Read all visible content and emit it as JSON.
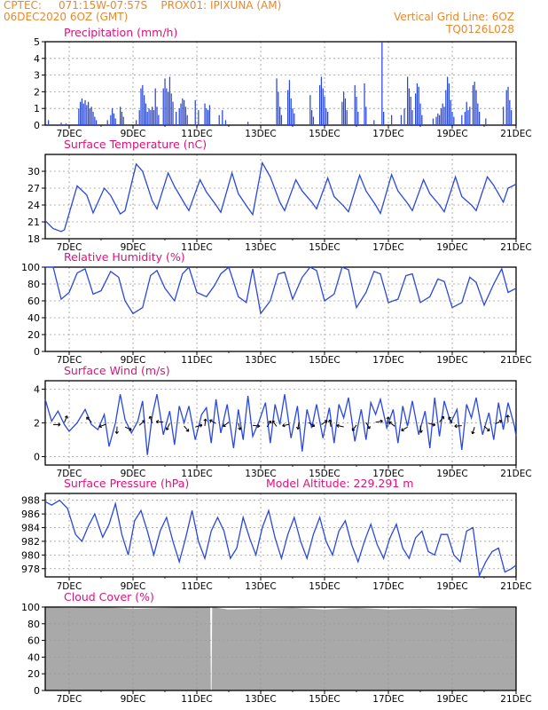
{
  "header": {
    "line1": "CPTEC:     071:15W-07:57S    PROX01: IPIXUNA (AM)",
    "line2": "06DEC2020 6OZ (GMT)",
    "vertical_grid": "Vertical Grid Line: 6OZ",
    "code": "TQ0126L028"
  },
  "colors": {
    "header": "#e8892c",
    "title": "#e0107a",
    "series": "#2a48e0",
    "cloud": "#a9a9a9",
    "grid": "#9a9a9a"
  },
  "chart_data": [
    {
      "id": "precip",
      "type": "bar",
      "title": "Precipitation (mm/h)",
      "x_ticks": [
        "7DEC",
        "9DEC",
        "11DEC",
        "13DEC",
        "15DEC",
        "17DEC",
        "19DEC",
        "21DEC"
      ],
      "ylim": [
        0,
        5
      ],
      "y_ticks": [
        "0",
        "1",
        "2",
        "3",
        "4",
        "5"
      ],
      "x_range_days": [
        6.25,
        21.0
      ],
      "bars": [
        [
          6.35,
          0.3
        ],
        [
          6.75,
          0.15
        ],
        [
          6.9,
          0.1
        ],
        [
          7.3,
          1.0
        ],
        [
          7.35,
          1.4
        ],
        [
          7.4,
          1.6
        ],
        [
          7.45,
          1.3
        ],
        [
          7.5,
          1.5
        ],
        [
          7.55,
          1.2
        ],
        [
          7.6,
          1.4
        ],
        [
          7.65,
          1.0
        ],
        [
          7.7,
          1.1
        ],
        [
          7.75,
          0.8
        ],
        [
          7.8,
          0.5
        ],
        [
          7.85,
          0.3
        ],
        [
          8.2,
          0.3
        ],
        [
          8.3,
          0.6
        ],
        [
          8.35,
          1.0
        ],
        [
          8.4,
          0.7
        ],
        [
          8.45,
          0.4
        ],
        [
          8.6,
          1.1
        ],
        [
          8.65,
          0.8
        ],
        [
          8.7,
          0.5
        ],
        [
          9.1,
          0.3
        ],
        [
          9.2,
          0.9
        ],
        [
          9.25,
          2.2
        ],
        [
          9.3,
          2.4
        ],
        [
          9.35,
          1.8
        ],
        [
          9.4,
          1.3
        ],
        [
          9.45,
          0.8
        ],
        [
          9.5,
          1.0
        ],
        [
          9.55,
          0.9
        ],
        [
          9.6,
          1.1
        ],
        [
          9.65,
          0.9
        ],
        [
          9.7,
          2.2
        ],
        [
          9.75,
          1.1
        ],
        [
          9.8,
          0.6
        ],
        [
          9.95,
          2.2
        ],
        [
          10.0,
          2.8
        ],
        [
          10.05,
          2.2
        ],
        [
          10.1,
          2.0
        ],
        [
          10.15,
          2.9
        ],
        [
          10.2,
          1.9
        ],
        [
          10.25,
          1.4
        ],
        [
          10.35,
          0.8
        ],
        [
          10.45,
          1.0
        ],
        [
          10.5,
          1.3
        ],
        [
          10.55,
          1.6
        ],
        [
          10.6,
          1.5
        ],
        [
          10.65,
          1.1
        ],
        [
          10.7,
          0.6
        ],
        [
          10.95,
          1.5
        ],
        [
          11.05,
          0.9
        ],
        [
          11.25,
          1.3
        ],
        [
          11.3,
          1.0
        ],
        [
          11.35,
          0.9
        ],
        [
          11.4,
          1.2
        ],
        [
          11.7,
          0.6
        ],
        [
          11.8,
          0.9
        ],
        [
          11.9,
          0.3
        ],
        [
          12.6,
          0.2
        ],
        [
          13.5,
          2.8
        ],
        [
          13.55,
          2.0
        ],
        [
          13.6,
          1.1
        ],
        [
          13.65,
          0.6
        ],
        [
          13.85,
          2.1
        ],
        [
          13.9,
          2.7
        ],
        [
          13.95,
          1.6
        ],
        [
          14.0,
          1.0
        ],
        [
          14.05,
          0.7
        ],
        [
          14.55,
          1.8
        ],
        [
          14.6,
          0.9
        ],
        [
          14.65,
          0.5
        ],
        [
          14.85,
          2.4
        ],
        [
          14.9,
          2.9
        ],
        [
          14.95,
          2.2
        ],
        [
          15.0,
          1.7
        ],
        [
          15.05,
          1.0
        ],
        [
          15.1,
          0.8
        ],
        [
          15.55,
          1.4
        ],
        [
          15.6,
          2.0
        ],
        [
          15.65,
          1.6
        ],
        [
          15.7,
          0.9
        ],
        [
          15.95,
          2.4
        ],
        [
          16.0,
          1.7
        ],
        [
          16.05,
          0.8
        ],
        [
          16.25,
          2.5
        ],
        [
          16.3,
          1.1
        ],
        [
          16.55,
          0.3
        ],
        [
          16.8,
          4.95
        ],
        [
          16.85,
          0.8
        ],
        [
          17.1,
          0.6
        ],
        [
          17.4,
          0.6
        ],
        [
          17.5,
          1.0
        ],
        [
          17.6,
          2.9
        ],
        [
          17.65,
          2.2
        ],
        [
          17.7,
          1.7
        ],
        [
          17.75,
          0.9
        ],
        [
          17.85,
          1.9
        ],
        [
          17.9,
          2.5
        ],
        [
          17.95,
          2.3
        ],
        [
          18.0,
          1.3
        ],
        [
          18.05,
          0.6
        ],
        [
          18.4,
          0.4
        ],
        [
          18.5,
          0.5
        ],
        [
          18.55,
          0.7
        ],
        [
          18.6,
          0.6
        ],
        [
          18.65,
          1.0
        ],
        [
          18.7,
          1.3
        ],
        [
          18.75,
          1.1
        ],
        [
          18.8,
          2.1
        ],
        [
          18.85,
          2.9
        ],
        [
          18.9,
          2.5
        ],
        [
          18.95,
          1.5
        ],
        [
          19.0,
          0.8
        ],
        [
          19.05,
          0.5
        ],
        [
          19.3,
          0.6
        ],
        [
          19.4,
          0.8
        ],
        [
          19.45,
          1.4
        ],
        [
          19.5,
          0.9
        ],
        [
          19.55,
          1.1
        ],
        [
          19.65,
          2.4
        ],
        [
          19.7,
          2.6
        ],
        [
          19.75,
          2.1
        ],
        [
          19.8,
          1.3
        ],
        [
          19.85,
          0.8
        ],
        [
          20.05,
          0.4
        ],
        [
          20.6,
          1.1
        ],
        [
          20.7,
          2.1
        ],
        [
          20.75,
          2.3
        ],
        [
          20.8,
          1.5
        ],
        [
          20.85,
          0.9
        ]
      ]
    },
    {
      "id": "temp",
      "type": "line",
      "title": "Surface Temperature (nC)",
      "x_ticks": [
        "7DEC",
        "9DEC",
        "11DEC",
        "13DEC",
        "15DEC",
        "17DEC",
        "19DEC",
        "21DEC"
      ],
      "ylim": [
        18,
        33
      ],
      "y_ticks": [
        "18",
        "21",
        "24",
        "27",
        "30"
      ],
      "x": [
        6.25,
        6.5,
        6.75,
        6.85,
        7.25,
        7.55,
        7.75,
        8.1,
        8.3,
        8.6,
        8.75,
        9.1,
        9.3,
        9.6,
        9.75,
        10.1,
        10.3,
        10.6,
        10.75,
        11.1,
        11.3,
        11.6,
        11.75,
        12.1,
        12.3,
        12.6,
        12.75,
        13.05,
        13.3,
        13.6,
        13.75,
        14.1,
        14.3,
        14.6,
        14.75,
        15.1,
        15.3,
        15.6,
        15.75,
        16.1,
        16.3,
        16.6,
        16.75,
        17.1,
        17.3,
        17.6,
        17.75,
        18.1,
        18.3,
        18.6,
        18.75,
        19.1,
        19.3,
        19.6,
        19.75,
        20.1,
        20.3,
        20.6,
        20.75,
        21.0
      ],
      "y": [
        21.2,
        19.8,
        19.3,
        19.6,
        27.4,
        25.8,
        22.6,
        27.0,
        25.7,
        22.4,
        23.0,
        31.3,
        30.0,
        24.8,
        23.3,
        29.7,
        27.3,
        24.4,
        23.0,
        28.5,
        26.3,
        24.0,
        22.7,
        29.7,
        26.0,
        23.5,
        22.3,
        31.5,
        29.0,
        24.5,
        23.0,
        28.5,
        26.5,
        24.5,
        23.3,
        28.8,
        25.5,
        23.8,
        22.8,
        29.3,
        26.5,
        24.0,
        22.5,
        29.4,
        26.5,
        24.3,
        23.0,
        28.5,
        26.0,
        24.0,
        22.8,
        29.0,
        25.5,
        24.0,
        23.0,
        29.0,
        27.5,
        24.5,
        27.0,
        27.7
      ]
    },
    {
      "id": "rh",
      "type": "line",
      "title": "Relative Humidity (%)",
      "x_ticks": [
        "7DEC",
        "9DEC",
        "11DEC",
        "13DEC",
        "15DEC",
        "17DEC",
        "19DEC",
        "21DEC"
      ],
      "ylim": [
        0,
        100
      ],
      "y_ticks": [
        "0",
        "20",
        "40",
        "60",
        "80",
        "100"
      ],
      "x": [
        6.25,
        6.5,
        6.75,
        7.0,
        7.25,
        7.5,
        7.75,
        8.0,
        8.3,
        8.55,
        8.75,
        9.0,
        9.3,
        9.55,
        9.75,
        10.0,
        10.3,
        10.55,
        10.75,
        11.0,
        11.3,
        11.55,
        11.75,
        12.0,
        12.3,
        12.55,
        12.75,
        13.0,
        13.3,
        13.55,
        13.75,
        14.0,
        14.3,
        14.55,
        14.75,
        15.0,
        15.3,
        15.55,
        15.75,
        16.0,
        16.3,
        16.55,
        16.75,
        17.0,
        17.3,
        17.55,
        17.75,
        18.0,
        18.3,
        18.55,
        18.75,
        19.0,
        19.3,
        19.55,
        19.75,
        20.0,
        20.3,
        20.55,
        20.75,
        21.0
      ],
      "y": [
        100,
        100,
        62,
        70,
        93,
        98,
        68,
        72,
        95,
        88,
        60,
        45,
        52,
        90,
        96,
        75,
        60,
        92,
        100,
        70,
        65,
        78,
        92,
        100,
        65,
        58,
        98,
        45,
        60,
        92,
        94,
        62,
        88,
        100,
        96,
        60,
        68,
        100,
        97,
        52,
        70,
        95,
        92,
        58,
        62,
        90,
        92,
        58,
        65,
        86,
        83,
        52,
        58,
        88,
        82,
        55,
        80,
        98,
        70,
        75
      ]
    },
    {
      "id": "wind",
      "type": "line",
      "title": "Surface Wind (m/s)",
      "x_ticks": [
        "7DEC",
        "9DEC",
        "11DEC",
        "13DEC",
        "15DEC",
        "17DEC",
        "19DEC",
        "21DEC"
      ],
      "ylim": [
        -0.5,
        4.5
      ],
      "y_ticks": [
        "0",
        "2",
        "4"
      ],
      "x": [
        6.25,
        6.45,
        6.65,
        6.85,
        7.0,
        7.25,
        7.5,
        7.7,
        7.9,
        8.1,
        8.25,
        8.45,
        8.6,
        8.75,
        8.95,
        9.15,
        9.3,
        9.45,
        9.6,
        9.75,
        9.95,
        10.15,
        10.3,
        10.45,
        10.6,
        10.75,
        10.95,
        11.15,
        11.3,
        11.45,
        11.6,
        11.75,
        11.95,
        12.15,
        12.3,
        12.45,
        12.6,
        12.75,
        12.95,
        13.15,
        13.3,
        13.45,
        13.6,
        13.75,
        13.95,
        14.15,
        14.3,
        14.45,
        14.6,
        14.75,
        14.95,
        15.15,
        15.3,
        15.45,
        15.6,
        15.75,
        15.95,
        16.15,
        16.3,
        16.45,
        16.6,
        16.75,
        16.95,
        17.15,
        17.3,
        17.45,
        17.6,
        17.75,
        17.95,
        18.15,
        18.3,
        18.45,
        18.6,
        18.75,
        18.95,
        19.15,
        19.3,
        19.45,
        19.6,
        19.75,
        19.95,
        20.15,
        20.3,
        20.45,
        20.6,
        20.75,
        20.95,
        21.0
      ],
      "y": [
        3.4,
        2.1,
        2.7,
        1.9,
        1.5,
        2.0,
        2.8,
        1.9,
        1.6,
        2.5,
        0.6,
        2.0,
        3.7,
        2.2,
        1.4,
        2.1,
        3.3,
        0.1,
        2.4,
        3.7,
        1.3,
        2.7,
        0.7,
        3.0,
        2.0,
        3.0,
        1.0,
        2.5,
        2.9,
        0.8,
        3.4,
        1.4,
        3.1,
        0.5,
        2.8,
        1.0,
        3.6,
        1.2,
        2.1,
        3.2,
        0.8,
        3.1,
        1.9,
        3.7,
        1.1,
        3.0,
        0.3,
        2.8,
        1.7,
        3.1,
        1.1,
        2.9,
        0.8,
        3.1,
        2.3,
        3.5,
        0.9,
        2.8,
        1.0,
        3.2,
        2.5,
        3.4,
        1.7,
        2.8,
        0.8,
        3.0,
        1.8,
        3.3,
        1.3,
        2.7,
        0.5,
        3.5,
        1.2,
        3.3,
        2.0,
        2.8,
        0.4,
        3.1,
        2.3,
        3.5,
        1.3,
        2.6,
        1.0,
        3.2,
        1.6,
        3.2,
        1.8,
        1.2
      ]
    },
    {
      "id": "pres",
      "type": "line",
      "title": "Surface Pressure (hPa)",
      "annotation": "Model Altitude: 229.291  m",
      "x_ticks": [
        "7DEC",
        "9DEC",
        "11DEC",
        "13DEC",
        "15DEC",
        "17DEC",
        "19DEC",
        "21DEC"
      ],
      "ylim": [
        976.8,
        989.0
      ],
      "y_ticks": [
        "978",
        "980",
        "982",
        "984",
        "986",
        "988"
      ],
      "x": [
        6.25,
        6.45,
        6.7,
        6.95,
        7.2,
        7.4,
        7.6,
        7.8,
        8.05,
        8.25,
        8.45,
        8.65,
        8.85,
        9.05,
        9.25,
        9.45,
        9.65,
        9.85,
        10.05,
        10.25,
        10.45,
        10.65,
        10.85,
        11.05,
        11.25,
        11.45,
        11.65,
        11.85,
        12.05,
        12.25,
        12.45,
        12.65,
        12.85,
        13.05,
        13.25,
        13.45,
        13.65,
        13.85,
        14.05,
        14.25,
        14.45,
        14.65,
        14.85,
        15.05,
        15.25,
        15.45,
        15.65,
        15.85,
        16.05,
        16.25,
        16.45,
        16.65,
        16.85,
        17.05,
        17.25,
        17.45,
        17.65,
        17.85,
        18.05,
        18.25,
        18.45,
        18.65,
        18.85,
        19.05,
        19.25,
        19.45,
        19.65,
        19.85,
        20.05,
        20.25,
        20.45,
        20.65,
        20.85,
        21.0
      ],
      "y": [
        987.8,
        987.3,
        988.0,
        986.8,
        983.0,
        982.0,
        984.2,
        986.0,
        982.6,
        984.5,
        987.5,
        983.0,
        980.0,
        985.0,
        986.5,
        983.5,
        980.0,
        983.5,
        985.5,
        982.0,
        979.0,
        982.5,
        986.5,
        982.0,
        979.5,
        983.5,
        985.5,
        983.5,
        979.5,
        981.0,
        985.5,
        982.5,
        980.0,
        984.0,
        986.5,
        982.5,
        979.5,
        983.0,
        985.5,
        982.0,
        979.5,
        983.0,
        985.5,
        982.0,
        980.0,
        983.5,
        985.0,
        981.5,
        979.0,
        982.0,
        984.5,
        981.5,
        979.5,
        982.5,
        984.5,
        981.0,
        979.5,
        982.5,
        983.5,
        980.5,
        980.0,
        983.0,
        983.0,
        980.0,
        979.0,
        983.5,
        984.0,
        977.0,
        979.0,
        980.5,
        981.0,
        977.5,
        978.0,
        978.5
      ]
    },
    {
      "id": "cloud",
      "type": "area",
      "title": "Cloud Cover (%)",
      "x_ticks": [
        "7DEC",
        "9DEC",
        "11DEC",
        "13DEC",
        "15DEC",
        "17DEC",
        "19DEC",
        "21DEC"
      ],
      "ylim": [
        0,
        100
      ],
      "y_ticks": [
        "0",
        "20",
        "40",
        "60",
        "80",
        "100"
      ],
      "x": [
        6.25,
        7.0,
        8.0,
        9.0,
        10.0,
        11.0,
        11.42,
        11.44,
        11.46,
        11.48,
        12.0,
        13.0,
        14.0,
        15.0,
        16.0,
        17.0,
        18.0,
        19.0,
        20.0,
        21.0
      ],
      "y": [
        100,
        99,
        100,
        98,
        99,
        100,
        100,
        0,
        0,
        100,
        97,
        98,
        99,
        97,
        99,
        97,
        98,
        97,
        99,
        99
      ]
    }
  ]
}
